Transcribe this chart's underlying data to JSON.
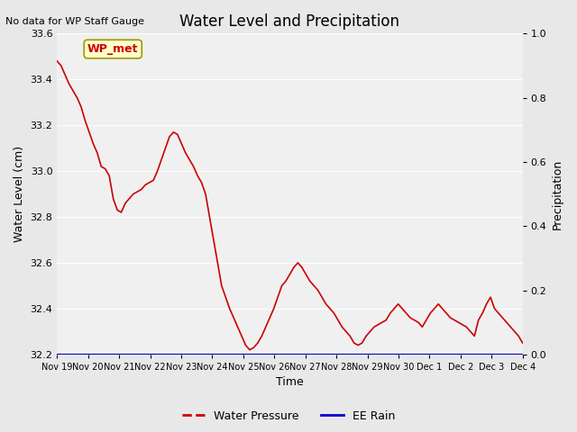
{
  "title": "Water Level and Precipitation",
  "subtitle": "No data for WP Staff Gauge",
  "xlabel": "Time",
  "ylabel_left": "Water Level (cm)",
  "ylabel_right": "Precipitation",
  "legend_label1": "Water Pressure",
  "legend_label2": "EE Rain",
  "legend_box_label": "WP_met",
  "ylim_left": [
    32.2,
    33.6
  ],
  "ylim_right": [
    0.0,
    1.0
  ],
  "yticks_left": [
    32.2,
    32.4,
    32.6,
    32.8,
    33.0,
    33.2,
    33.4,
    33.6
  ],
  "yticks_right": [
    0.0,
    0.2,
    0.4,
    0.6,
    0.8,
    1.0
  ],
  "line_color_wp": "#cc0000",
  "line_color_rain": "#0000cc",
  "bg_color": "#e8e8e8",
  "plot_bg_color": "#f0f0f0",
  "xtick_labels": [
    "Nov 19",
    "Nov 20",
    "Nov 21",
    "Nov 22",
    "Nov 23",
    "Nov 24",
    "Nov 25",
    "Nov 26",
    "Nov 27",
    "Nov 28",
    "Nov 29",
    "Nov 30",
    "Dec 1",
    "Dec 2",
    "Dec 3",
    "Dec 4"
  ],
  "water_pressure": [
    33.48,
    33.46,
    33.42,
    33.38,
    33.35,
    33.32,
    33.28,
    33.22,
    33.17,
    33.12,
    33.08,
    33.02,
    33.01,
    32.98,
    32.88,
    32.83,
    32.82,
    32.86,
    32.88,
    32.9,
    32.91,
    32.92,
    32.94,
    32.95,
    32.96,
    33.0,
    33.05,
    33.1,
    33.15,
    33.17,
    33.16,
    33.12,
    33.08,
    33.05,
    33.02,
    32.98,
    32.95,
    32.9,
    32.8,
    32.7,
    32.6,
    32.5,
    32.45,
    32.4,
    32.36,
    32.32,
    32.28,
    32.24,
    32.22,
    32.23,
    32.25,
    32.28,
    32.32,
    32.36,
    32.4,
    32.45,
    32.5,
    32.52,
    32.55,
    32.58,
    32.6,
    32.58,
    32.55,
    32.52,
    32.5,
    32.48,
    32.45,
    32.42,
    32.4,
    32.38,
    32.35,
    32.32,
    32.3,
    32.28,
    32.25,
    32.24,
    32.25,
    32.28,
    32.3,
    32.32,
    32.33,
    32.34,
    32.35,
    32.38,
    32.4,
    32.42,
    32.4,
    32.38,
    32.36,
    32.35,
    32.34,
    32.32,
    32.35,
    32.38,
    32.4,
    32.42,
    32.4,
    32.38,
    32.36,
    32.35,
    32.34,
    32.33,
    32.32,
    32.3,
    32.28,
    32.35,
    32.38,
    32.42,
    32.45,
    32.4,
    32.38,
    32.36,
    32.34,
    32.32,
    32.3,
    32.28,
    32.25
  ],
  "rain": []
}
